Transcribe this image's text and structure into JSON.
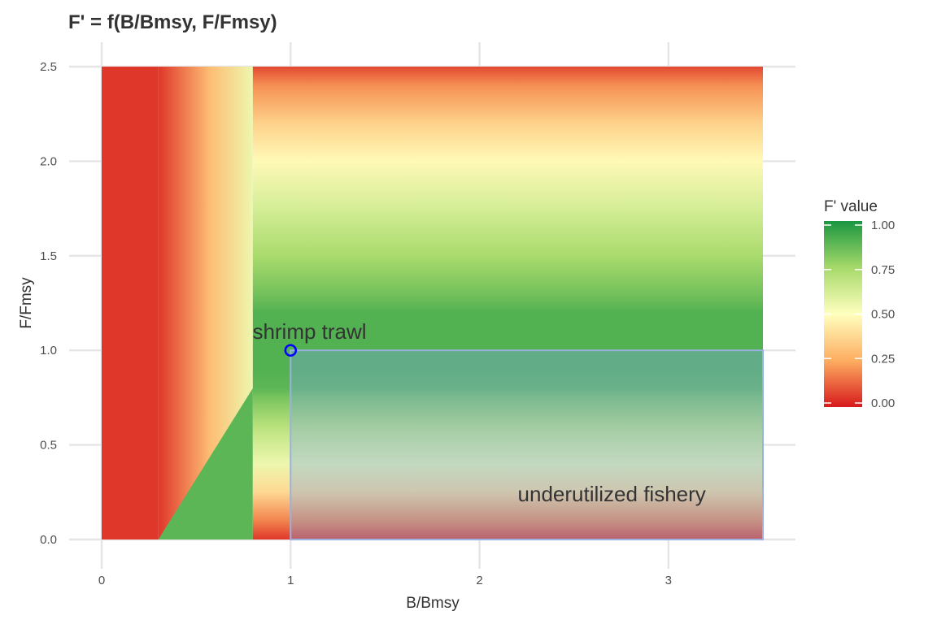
{
  "chart_data": {
    "type": "heatmap",
    "title": "F' = f(B/Bmsy, F/Fmsy)",
    "xlabel": "B/Bmsy",
    "ylabel": "F/Fmsy",
    "xlim": [
      0,
      3.5
    ],
    "ylim": [
      0,
      2.5
    ],
    "x_ticks": [
      0,
      1,
      2,
      3
    ],
    "x_tick_labels": [
      "0",
      "1",
      "2",
      "3"
    ],
    "y_ticks": [
      0,
      0.5,
      1,
      1.5,
      2,
      2.5
    ],
    "y_tick_labels": [
      "0.0",
      "0.5",
      "1.0",
      "1.5",
      "2.0",
      "2.5"
    ],
    "grid": true,
    "legend": {
      "title": "F' value",
      "position": "right",
      "min": 0,
      "max": 1,
      "breaks": [
        0,
        0.25,
        0.5,
        0.75,
        1
      ],
      "break_labels": [
        "0.00",
        "0.25",
        "0.50",
        "0.75",
        "1.00"
      ],
      "palette": [
        "#d7191c",
        "#fdae61",
        "#ffffbf",
        "#a6d96a",
        "#1a9641"
      ]
    },
    "regions": {
      "low_b_limit": 0.3,
      "ramp_limit": 0.8,
      "f_profile_y": [
        0,
        0.1,
        0.25,
        0.4,
        0.5,
        0.6,
        0.75,
        0.8,
        0.9,
        1.0,
        1.2,
        1.3,
        1.5,
        1.75,
        2.0,
        2.2,
        2.4,
        2.5
      ],
      "f_profile_value": [
        0.05,
        0.18,
        0.38,
        0.55,
        0.62,
        0.7,
        0.83,
        0.88,
        0.9,
        0.9,
        0.9,
        0.84,
        0.74,
        0.62,
        0.48,
        0.36,
        0.2,
        0.08
      ]
    },
    "points": [
      {
        "name": "shrimp trawl",
        "x": 1.0,
        "y": 1.0,
        "color": "#0000ff"
      }
    ],
    "rectangles": [
      {
        "x0": 1.0,
        "x1": 3.5,
        "y0": 0.0,
        "y1": 1.0,
        "fill": "#7fa8e0",
        "stroke": "#9ab0e0"
      }
    ],
    "annotations": [
      {
        "text": "shrimp trawl",
        "x": 1.1,
        "y": 1.1
      },
      {
        "text": "underutilized fishery",
        "x": 2.7,
        "y": 0.24
      }
    ]
  }
}
